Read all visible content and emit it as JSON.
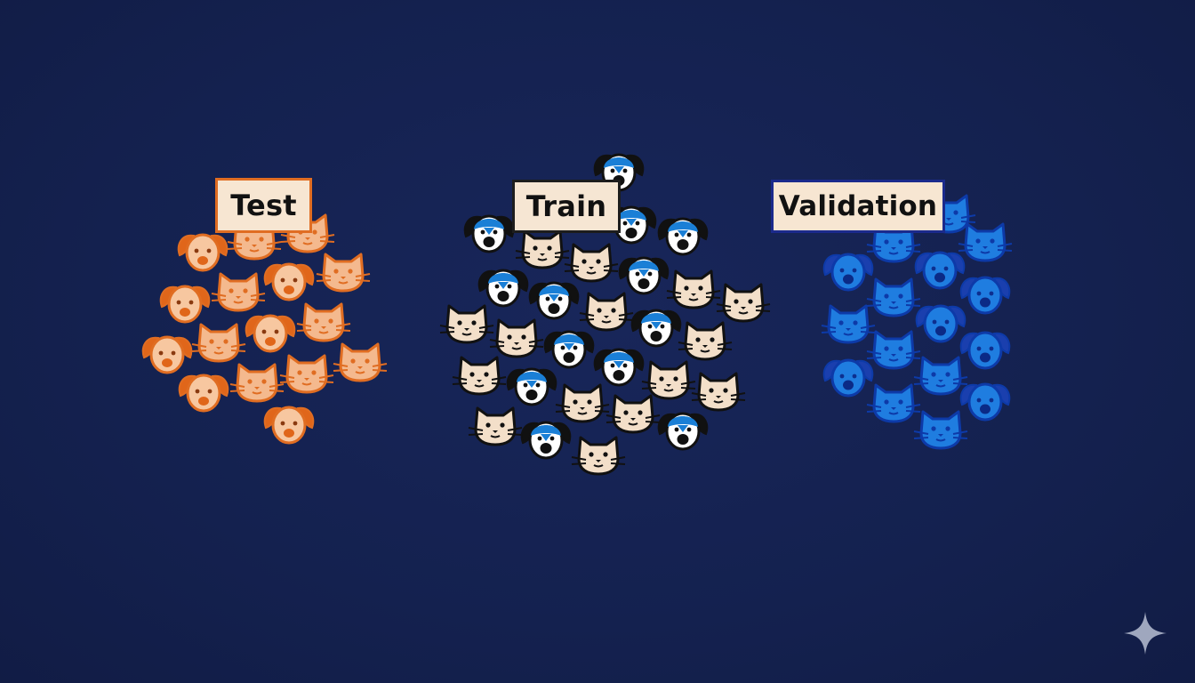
{
  "groups": {
    "test": {
      "label": "Test",
      "palette": {
        "cat_face": "#f4b98e",
        "cat_stroke": "#e06d22",
        "dog_face": "#f7c7a0",
        "dog_ear": "#e0661a",
        "dog_stroke": "#e06d22"
      },
      "icons": [
        {
          "kind": "dog"
        },
        {
          "kind": "cat"
        },
        {
          "kind": "cat"
        },
        {
          "kind": "cat"
        },
        {
          "kind": "dog"
        },
        {
          "kind": "cat"
        },
        {
          "kind": "dog"
        },
        {
          "kind": "cat"
        },
        {
          "kind": "dog"
        },
        {
          "kind": "cat"
        },
        {
          "kind": "dog"
        },
        {
          "kind": "cat"
        },
        {
          "kind": "dog"
        },
        {
          "kind": "cat"
        },
        {
          "kind": "cat"
        },
        {
          "kind": "dog"
        }
      ]
    },
    "train": {
      "label": "Train",
      "palette": {
        "cat_face": "#f3dfc9",
        "cat_stroke": "#111111",
        "dog_face": "#ffffff",
        "dog_ear": "#111111",
        "dog_cap": "#1a7fd6",
        "dog_stroke": "#111111"
      },
      "icons": [
        {
          "kind": "dog"
        },
        {
          "kind": "dog"
        },
        {
          "kind": "dog"
        },
        {
          "kind": "dog"
        },
        {
          "kind": "cat"
        },
        {
          "kind": "cat"
        },
        {
          "kind": "dog"
        },
        {
          "kind": "dog"
        },
        {
          "kind": "cat"
        },
        {
          "kind": "dog"
        },
        {
          "kind": "cat"
        },
        {
          "kind": "cat"
        },
        {
          "kind": "cat"
        },
        {
          "kind": "cat"
        },
        {
          "kind": "dog"
        },
        {
          "kind": "dog"
        },
        {
          "kind": "cat"
        },
        {
          "kind": "cat"
        },
        {
          "kind": "dog"
        },
        {
          "kind": "dog"
        },
        {
          "kind": "cat"
        },
        {
          "kind": "cat"
        },
        {
          "kind": "cat"
        },
        {
          "kind": "cat"
        },
        {
          "kind": "cat"
        },
        {
          "kind": "dog"
        },
        {
          "kind": "dog"
        },
        {
          "kind": "cat"
        }
      ]
    },
    "validation": {
      "label": "Validation",
      "palette": {
        "cat_face": "#1f7de0",
        "cat_stroke": "#0d3aa8",
        "dog_face": "#1f7de0",
        "dog_ear": "#1a3fae",
        "dog_stroke": "#0d3aa8"
      },
      "icons": [
        {
          "kind": "cat"
        },
        {
          "kind": "cat"
        },
        {
          "kind": "cat"
        },
        {
          "kind": "dog"
        },
        {
          "kind": "dog"
        },
        {
          "kind": "dog"
        },
        {
          "kind": "cat"
        },
        {
          "kind": "cat"
        },
        {
          "kind": "dog"
        },
        {
          "kind": "dog"
        },
        {
          "kind": "cat"
        },
        {
          "kind": "dog"
        },
        {
          "kind": "cat"
        },
        {
          "kind": "dog"
        },
        {
          "kind": "cat"
        },
        {
          "kind": "cat"
        },
        {
          "kind": "dog"
        }
      ]
    }
  },
  "background_color": "#14214f",
  "sparkle_icon": "sparkle-icon"
}
